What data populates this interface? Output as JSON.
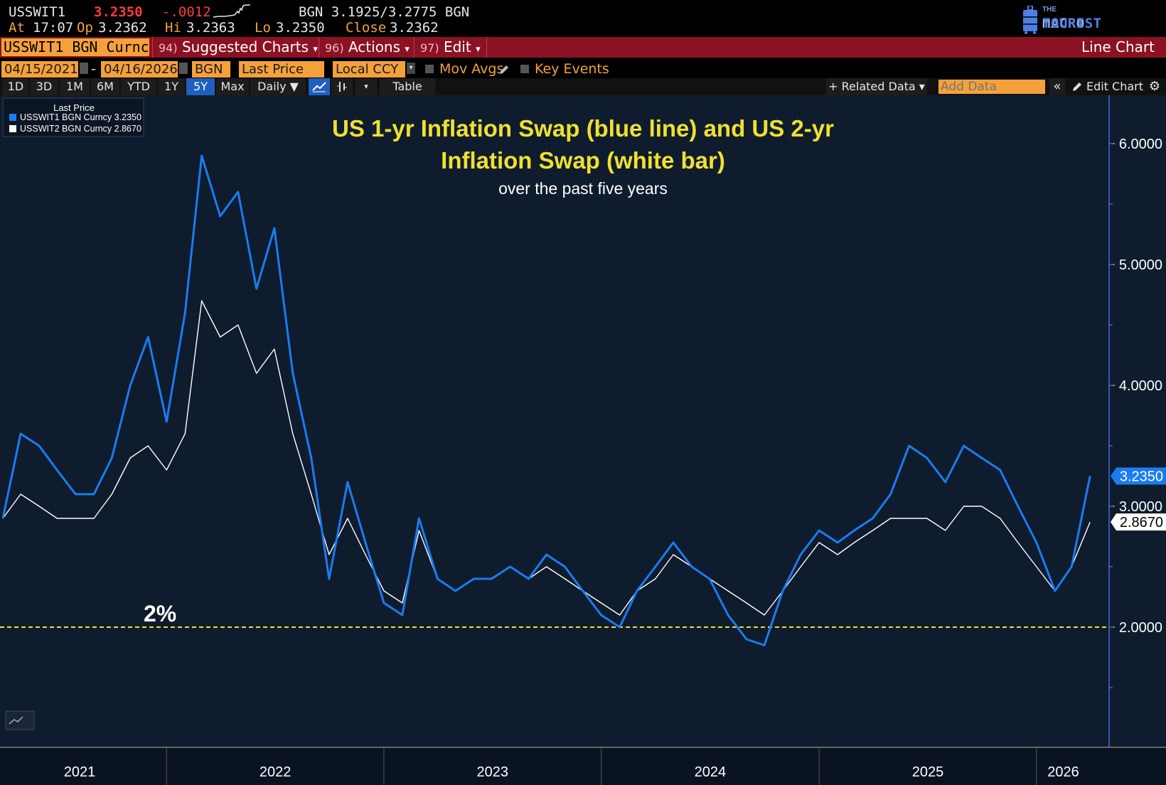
{
  "quote": {
    "ticker": "USSWIT1",
    "last": "3.2350",
    "change": "-.0012",
    "bid_ask": "BGN 3.1925/3.2775 BGN",
    "at_label": "At",
    "time": "17:07",
    "op_label": "Op",
    "open": "3.2362",
    "hi_label": "Hi",
    "hi": "3.2363",
    "lo_label": "Lo",
    "lo": "3.2350",
    "close_label": "Close",
    "close": "3.2362"
  },
  "logo": {
    "small": "THE",
    "part1": "MACRO",
    "part2": "TOURIST"
  },
  "menu": {
    "ticker_field": "USSWIT1 BGN Curnc",
    "items": [
      {
        "num": "94)",
        "label": "Suggested Charts",
        "arrow": "▾"
      },
      {
        "num": "96)",
        "label": "Actions",
        "arrow": "▾"
      },
      {
        "num": "97)",
        "label": "Edit",
        "arrow": "▾"
      }
    ],
    "chart_type": "Line Chart"
  },
  "settings": {
    "start_date": "04/15/2021",
    "separator": "-",
    "end_date": "04/16/2026",
    "source": "BGN",
    "field": "Last Price",
    "currency": "Local CCY",
    "mov_avgs": "Mov Avgs",
    "key_events": "Key Events"
  },
  "toolbar": {
    "periods": [
      "1D",
      "3D",
      "1M",
      "6M",
      "YTD",
      "1Y",
      "5Y",
      "Max"
    ],
    "selected_period": "5Y",
    "frequency": "Daily ▼",
    "table": "Table",
    "related_data": "+ Related Data ▾",
    "add_data_placeholder": "Add Data",
    "edit_chart": "Edit Chart"
  },
  "chart_data": {
    "type": "line",
    "title": "US 1-yr Inflation Swap (blue line) and US 2-yr Inflation Swap (white bar)",
    "subtitle": "over the past five years",
    "legend_title": "Last Price",
    "legend_position": "top-left",
    "annotation": "2%",
    "reference_line": {
      "y": 2.0,
      "color": "#f0e030",
      "style": "dashed"
    },
    "ylim": [
      1.8,
      6.3
    ],
    "y_ticks": [
      "6.0000",
      "5.0000",
      "4.0000",
      "3.0000",
      "2.0000"
    ],
    "x_labels": [
      "2021",
      "2022",
      "2023",
      "2024",
      "2025",
      "2026"
    ],
    "grid": false,
    "series": [
      {
        "name": "USSWIT1 BGN Curncy",
        "last_label": "3.2350",
        "color": "#1a7cf0",
        "x": [
          "2021-04",
          "2021-05",
          "2021-06",
          "2021-07",
          "2021-08",
          "2021-09",
          "2021-10",
          "2021-11",
          "2021-12",
          "2022-01",
          "2022-02",
          "2022-03",
          "2022-04",
          "2022-05",
          "2022-06",
          "2022-07",
          "2022-08",
          "2022-09",
          "2022-10",
          "2022-11",
          "2022-12",
          "2023-01",
          "2023-02",
          "2023-03",
          "2023-04",
          "2023-05",
          "2023-06",
          "2023-07",
          "2023-08",
          "2023-09",
          "2023-10",
          "2023-11",
          "2023-12",
          "2024-01",
          "2024-02",
          "2024-03",
          "2024-04",
          "2024-05",
          "2024-06",
          "2024-07",
          "2024-08",
          "2024-09",
          "2024-10",
          "2024-11",
          "2024-12",
          "2025-01",
          "2025-02",
          "2025-03",
          "2025-04",
          "2025-05",
          "2025-06",
          "2025-07",
          "2025-08",
          "2025-09",
          "2025-10",
          "2025-11",
          "2025-12",
          "2026-01",
          "2026-02",
          "2026-03",
          "2026-04"
        ],
        "values": [
          2.9,
          3.6,
          3.5,
          3.3,
          3.1,
          3.1,
          3.4,
          4.0,
          4.4,
          3.7,
          4.6,
          5.9,
          5.4,
          5.6,
          4.8,
          5.3,
          4.1,
          3.4,
          2.4,
          3.2,
          2.7,
          2.2,
          2.1,
          2.9,
          2.4,
          2.3,
          2.4,
          2.4,
          2.5,
          2.4,
          2.6,
          2.5,
          2.3,
          2.1,
          2.0,
          2.3,
          2.5,
          2.7,
          2.5,
          2.4,
          2.1,
          1.9,
          1.85,
          2.3,
          2.6,
          2.8,
          2.7,
          2.8,
          2.9,
          3.1,
          3.5,
          3.4,
          3.2,
          3.5,
          3.4,
          3.3,
          3.0,
          2.7,
          2.3,
          2.5,
          3.25
        ]
      },
      {
        "name": "USSWIT2 BGN Curncy",
        "last_label": "2.8670",
        "color": "#ffffff",
        "x": [
          "2021-04",
          "2021-05",
          "2021-06",
          "2021-07",
          "2021-08",
          "2021-09",
          "2021-10",
          "2021-11",
          "2021-12",
          "2022-01",
          "2022-02",
          "2022-03",
          "2022-04",
          "2022-05",
          "2022-06",
          "2022-07",
          "2022-08",
          "2022-09",
          "2022-10",
          "2022-11",
          "2022-12",
          "2023-01",
          "2023-02",
          "2023-03",
          "2023-04",
          "2023-05",
          "2023-06",
          "2023-07",
          "2023-08",
          "2023-09",
          "2023-10",
          "2023-11",
          "2023-12",
          "2024-01",
          "2024-02",
          "2024-03",
          "2024-04",
          "2024-05",
          "2024-06",
          "2024-07",
          "2024-08",
          "2024-09",
          "2024-10",
          "2024-11",
          "2024-12",
          "2025-01",
          "2025-02",
          "2025-03",
          "2025-04",
          "2025-05",
          "2025-06",
          "2025-07",
          "2025-08",
          "2025-09",
          "2025-10",
          "2025-11",
          "2025-12",
          "2026-01",
          "2026-02",
          "2026-03",
          "2026-04"
        ],
        "values": [
          2.9,
          3.1,
          3.0,
          2.9,
          2.9,
          2.9,
          3.1,
          3.4,
          3.5,
          3.3,
          3.6,
          4.7,
          4.4,
          4.5,
          4.1,
          4.3,
          3.6,
          3.1,
          2.6,
          2.9,
          2.6,
          2.3,
          2.2,
          2.8,
          2.4,
          2.3,
          2.4,
          2.4,
          2.5,
          2.4,
          2.5,
          2.4,
          2.3,
          2.2,
          2.1,
          2.3,
          2.4,
          2.6,
          2.5,
          2.4,
          2.3,
          2.2,
          2.1,
          2.3,
          2.5,
          2.7,
          2.6,
          2.7,
          2.8,
          2.9,
          2.9,
          2.9,
          2.8,
          3.0,
          3.0,
          2.9,
          2.7,
          2.5,
          2.3,
          2.5,
          2.87
        ]
      }
    ]
  }
}
